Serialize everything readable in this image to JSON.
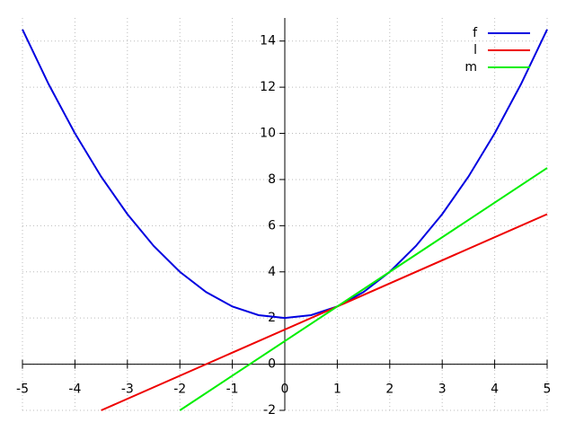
{
  "chart_data": {
    "type": "line",
    "xlim": [
      -5,
      5
    ],
    "ylim": [
      -2,
      15
    ],
    "xticks": [
      -5,
      -4,
      -3,
      -2,
      -1,
      0,
      1,
      2,
      3,
      4,
      5
    ],
    "yticks": [
      -2,
      0,
      2,
      4,
      6,
      8,
      10,
      12,
      14
    ],
    "grid": true,
    "legend": "top-right",
    "series": [
      {
        "name": "f",
        "color": "#0000e0",
        "x": [
          -5,
          -4.5,
          -4,
          -3.5,
          -3,
          -2.5,
          -2,
          -1.5,
          -1,
          -0.5,
          0,
          0.5,
          1,
          1.5,
          2,
          2.5,
          3,
          3.5,
          4,
          4.5,
          5
        ],
        "values": [
          14.5,
          12.125,
          10,
          8.125,
          6.5,
          5.125,
          4,
          3.125,
          2.5,
          2.125,
          2,
          2.125,
          2.5,
          3.125,
          4,
          5.125,
          6.5,
          8.125,
          10,
          12.125,
          14.5
        ]
      },
      {
        "name": "l",
        "color": "#ee0000",
        "x": [
          -3.5,
          5
        ],
        "values": [
          -2,
          6.5
        ]
      },
      {
        "name": "m",
        "color": "#00ee00",
        "x": [
          -2,
          5
        ],
        "values": [
          -2,
          8.5
        ]
      }
    ]
  }
}
